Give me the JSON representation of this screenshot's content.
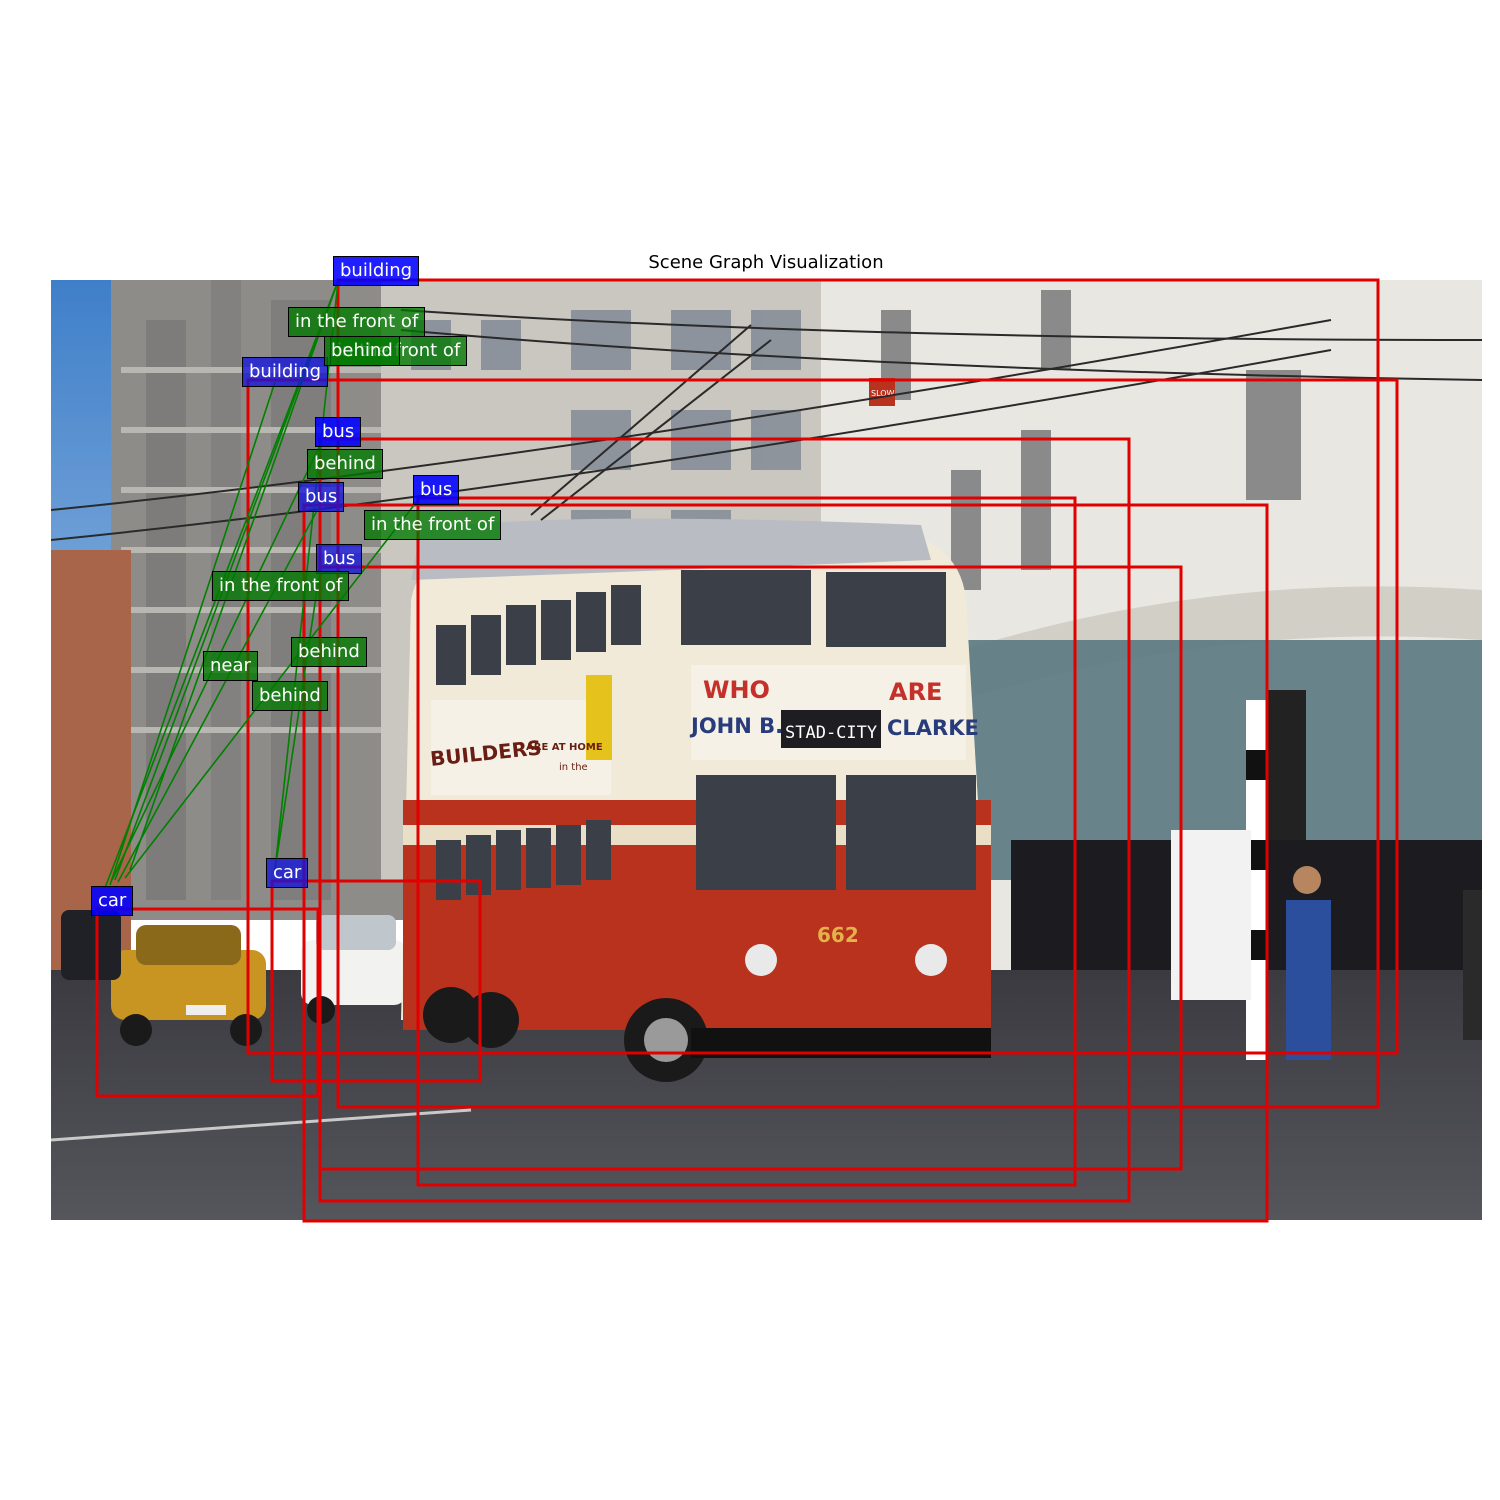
{
  "title": "Scene Graph Visualization",
  "photo": {
    "bus_signs": {
      "who": "WHO",
      "are": "ARE",
      "john": "JOHN B.",
      "destination": "STAD-CITY",
      "clarke": "CLARKE",
      "builders": "BUILDERS",
      "are_at_home": "ARE AT HOME",
      "in_the": "in the",
      "number": "662",
      "slow_sign": "SLOW"
    }
  },
  "objects": [
    {
      "label": "building"
    },
    {
      "label": "building"
    },
    {
      "label": "bus"
    },
    {
      "label": "bus"
    },
    {
      "label": "bus"
    },
    {
      "label": "bus"
    },
    {
      "label": "car"
    },
    {
      "label": "car"
    }
  ],
  "relations": [
    {
      "label": "in the front of"
    },
    {
      "label": "in the front of"
    },
    {
      "label": "behind"
    },
    {
      "label": "behind"
    },
    {
      "label": "in the front of"
    },
    {
      "label": "in the front of"
    },
    {
      "label": "behind"
    },
    {
      "label": "near"
    },
    {
      "label": "behind"
    }
  ],
  "colors": {
    "box": "#e00000",
    "object_tag": "#0000ff",
    "relation_tag": "#007800",
    "edge": "#008000"
  }
}
